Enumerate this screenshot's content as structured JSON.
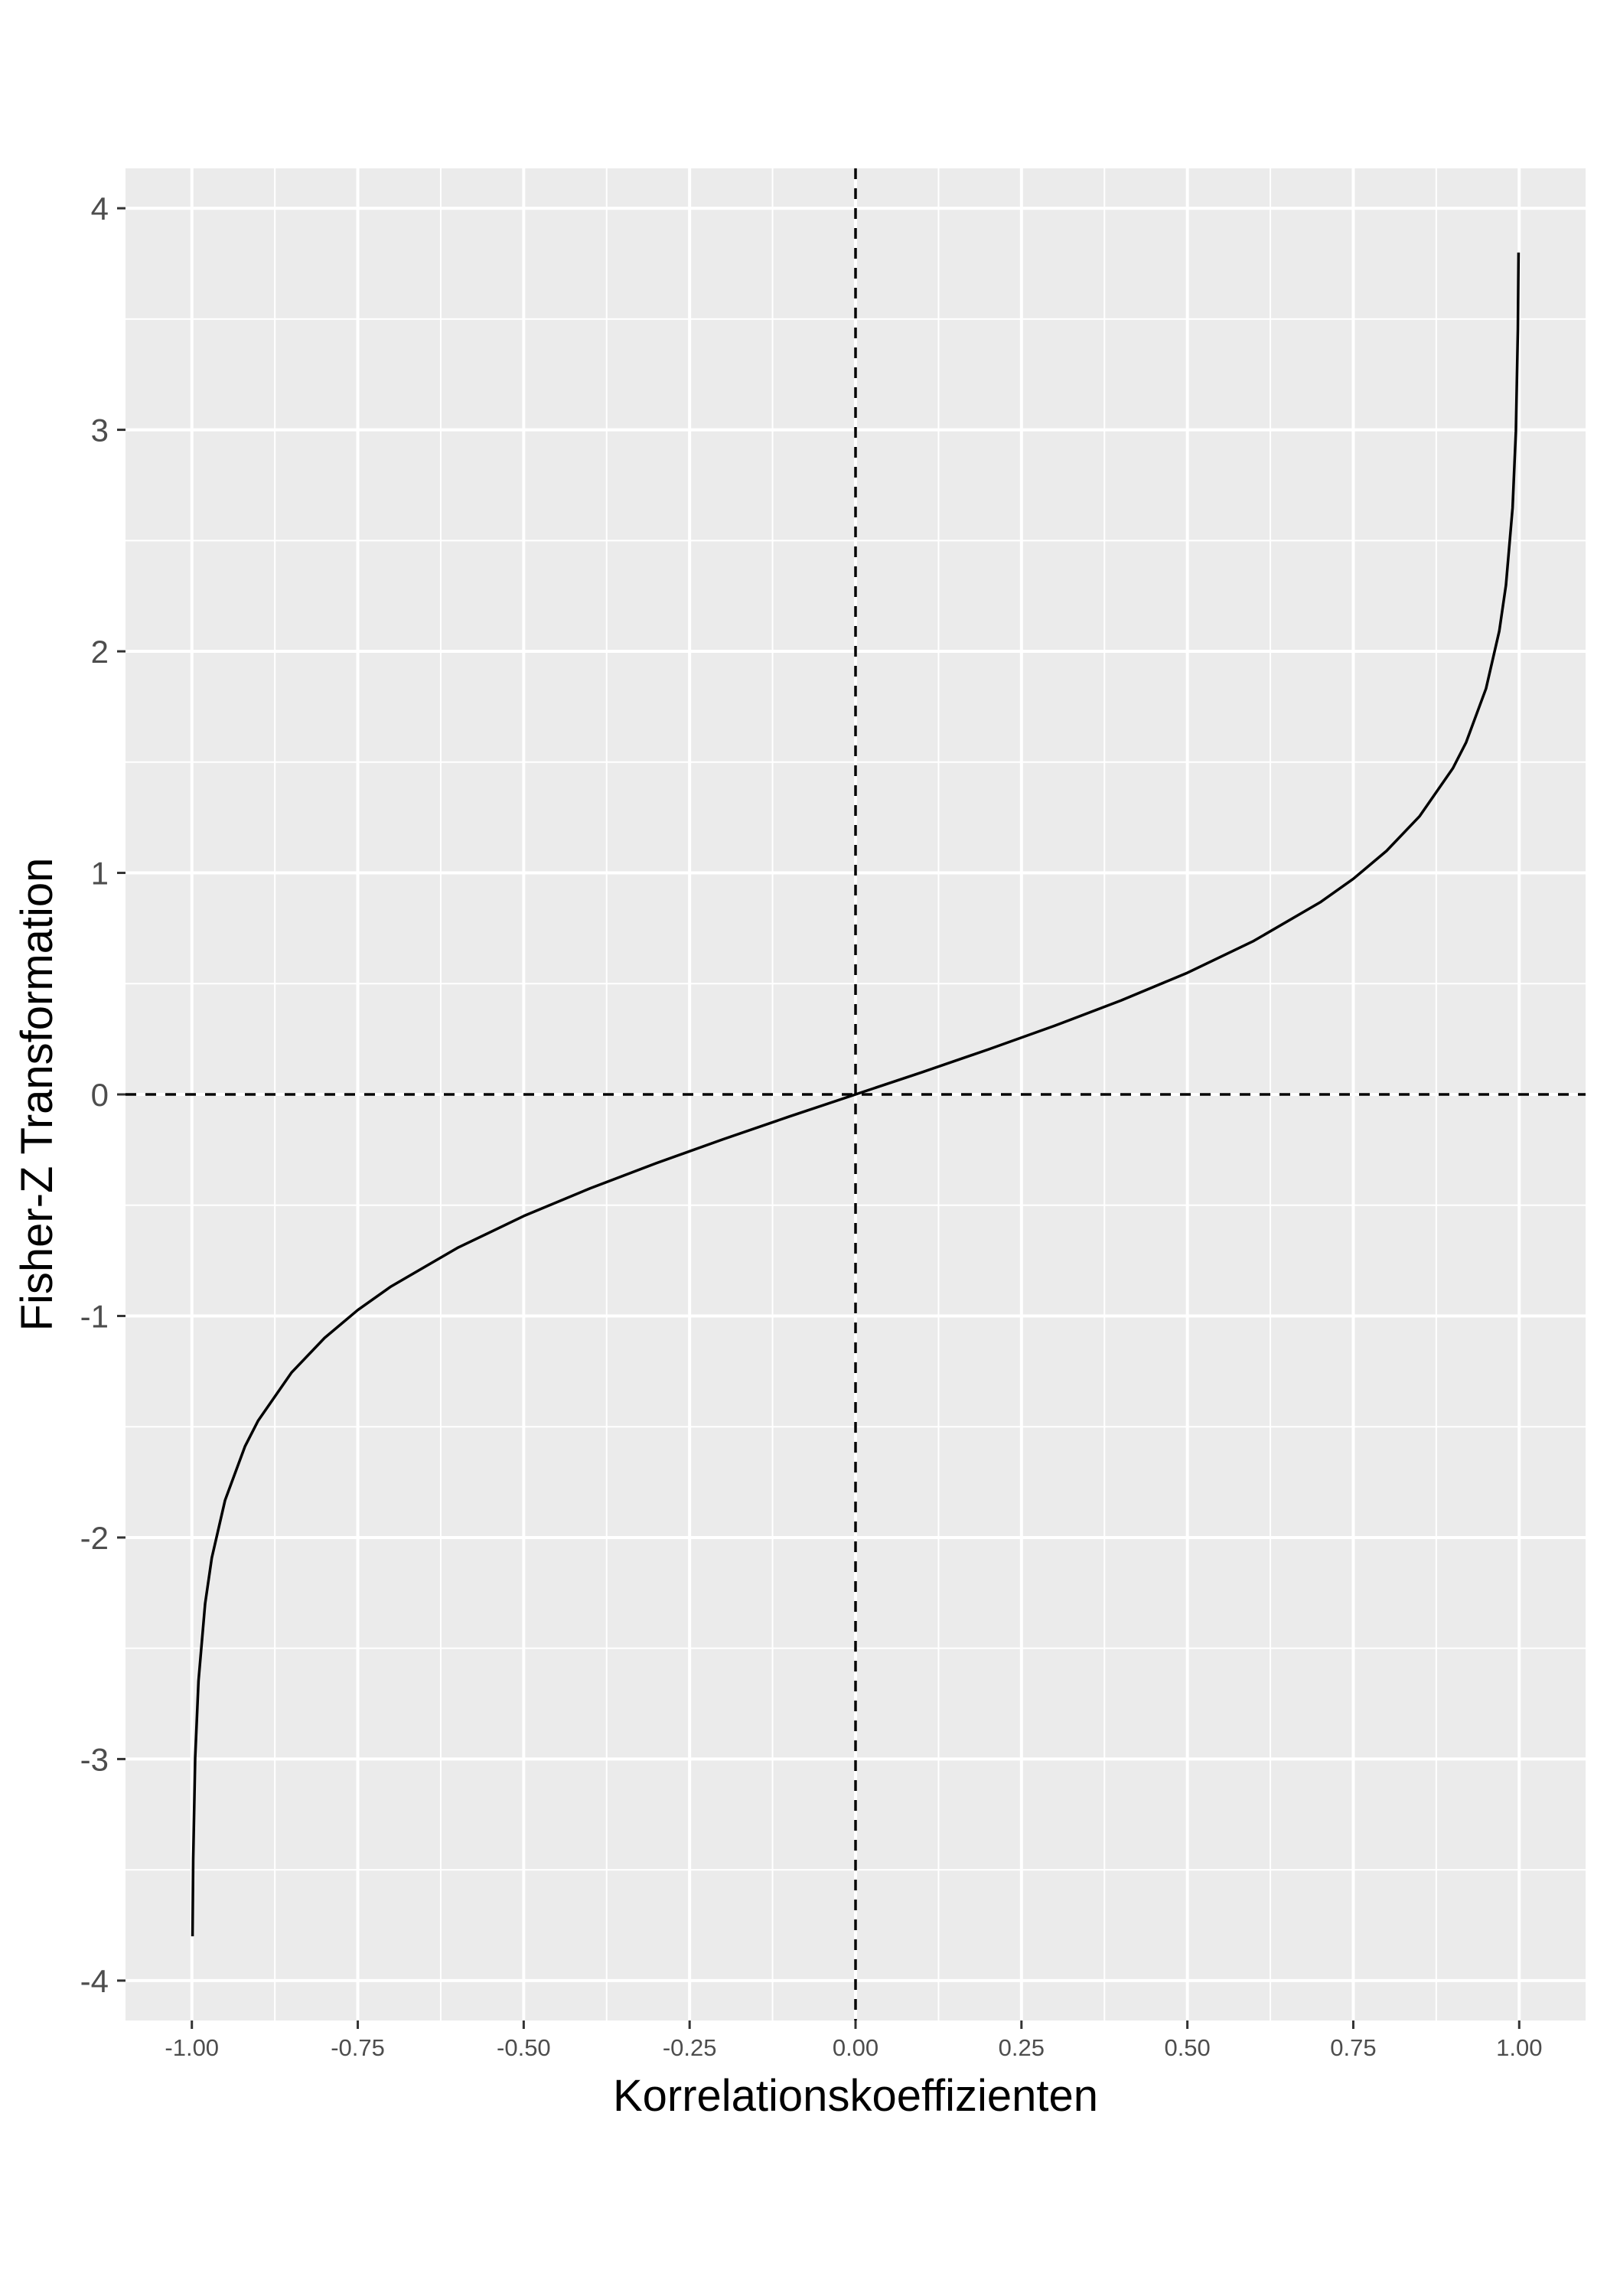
{
  "chart_data": {
    "type": "line",
    "title": "",
    "xlabel": "Korrelationskoeffizienten",
    "ylabel": "Fisher-Z Transformation",
    "xlim": [
      -1.1,
      1.1
    ],
    "ylim": [
      -4.18,
      4.18
    ],
    "x_ticks": [
      -1.0,
      -0.75,
      -0.5,
      -0.25,
      0.0,
      0.25,
      0.5,
      0.75,
      1.0
    ],
    "x_tick_labels": [
      "-1.00",
      "-0.75",
      "-0.50",
      "-0.25",
      "0.00",
      "0.25",
      "0.50",
      "0.75",
      "1.00"
    ],
    "y_ticks": [
      -4,
      -3,
      -2,
      -1,
      0,
      1,
      2,
      3,
      4
    ],
    "y_tick_labels": [
      "-4",
      "-3",
      "-2",
      "-1",
      "0",
      "1",
      "2",
      "3",
      "4"
    ],
    "grid": true,
    "reference_lines": [
      {
        "orientation": "vertical",
        "value": 0,
        "style": "dashed"
      },
      {
        "orientation": "horizontal",
        "value": 0,
        "style": "dashed"
      }
    ],
    "series": [
      {
        "x": [
          -0.999,
          -0.998,
          -0.995,
          -0.99,
          -0.98,
          -0.97,
          -0.95,
          -0.92,
          -0.9,
          -0.85,
          -0.8,
          -0.75,
          -0.7,
          -0.6,
          -0.5,
          -0.4,
          -0.3,
          -0.2,
          -0.1,
          0.0,
          0.1,
          0.2,
          0.3,
          0.4,
          0.5,
          0.6,
          0.7,
          0.75,
          0.8,
          0.85,
          0.9,
          0.92,
          0.95,
          0.97,
          0.98,
          0.99,
          0.995,
          0.998,
          0.999
        ],
        "y": [
          -3.8,
          -3.453,
          -2.994,
          -2.647,
          -2.298,
          -2.092,
          -1.832,
          -1.589,
          -1.472,
          -1.256,
          -1.099,
          -0.973,
          -0.867,
          -0.693,
          -0.549,
          -0.424,
          -0.31,
          -0.203,
          -0.1,
          0.0,
          0.1,
          0.203,
          0.31,
          0.424,
          0.549,
          0.693,
          0.867,
          0.973,
          1.099,
          1.256,
          1.472,
          1.589,
          1.832,
          2.092,
          2.298,
          2.647,
          2.994,
          3.453,
          3.8
        ]
      }
    ],
    "colors": {
      "panel_background": "#ebebeb",
      "grid_line": "#ffffff",
      "series_line": "#000000",
      "reference_line": "#000000"
    }
  }
}
